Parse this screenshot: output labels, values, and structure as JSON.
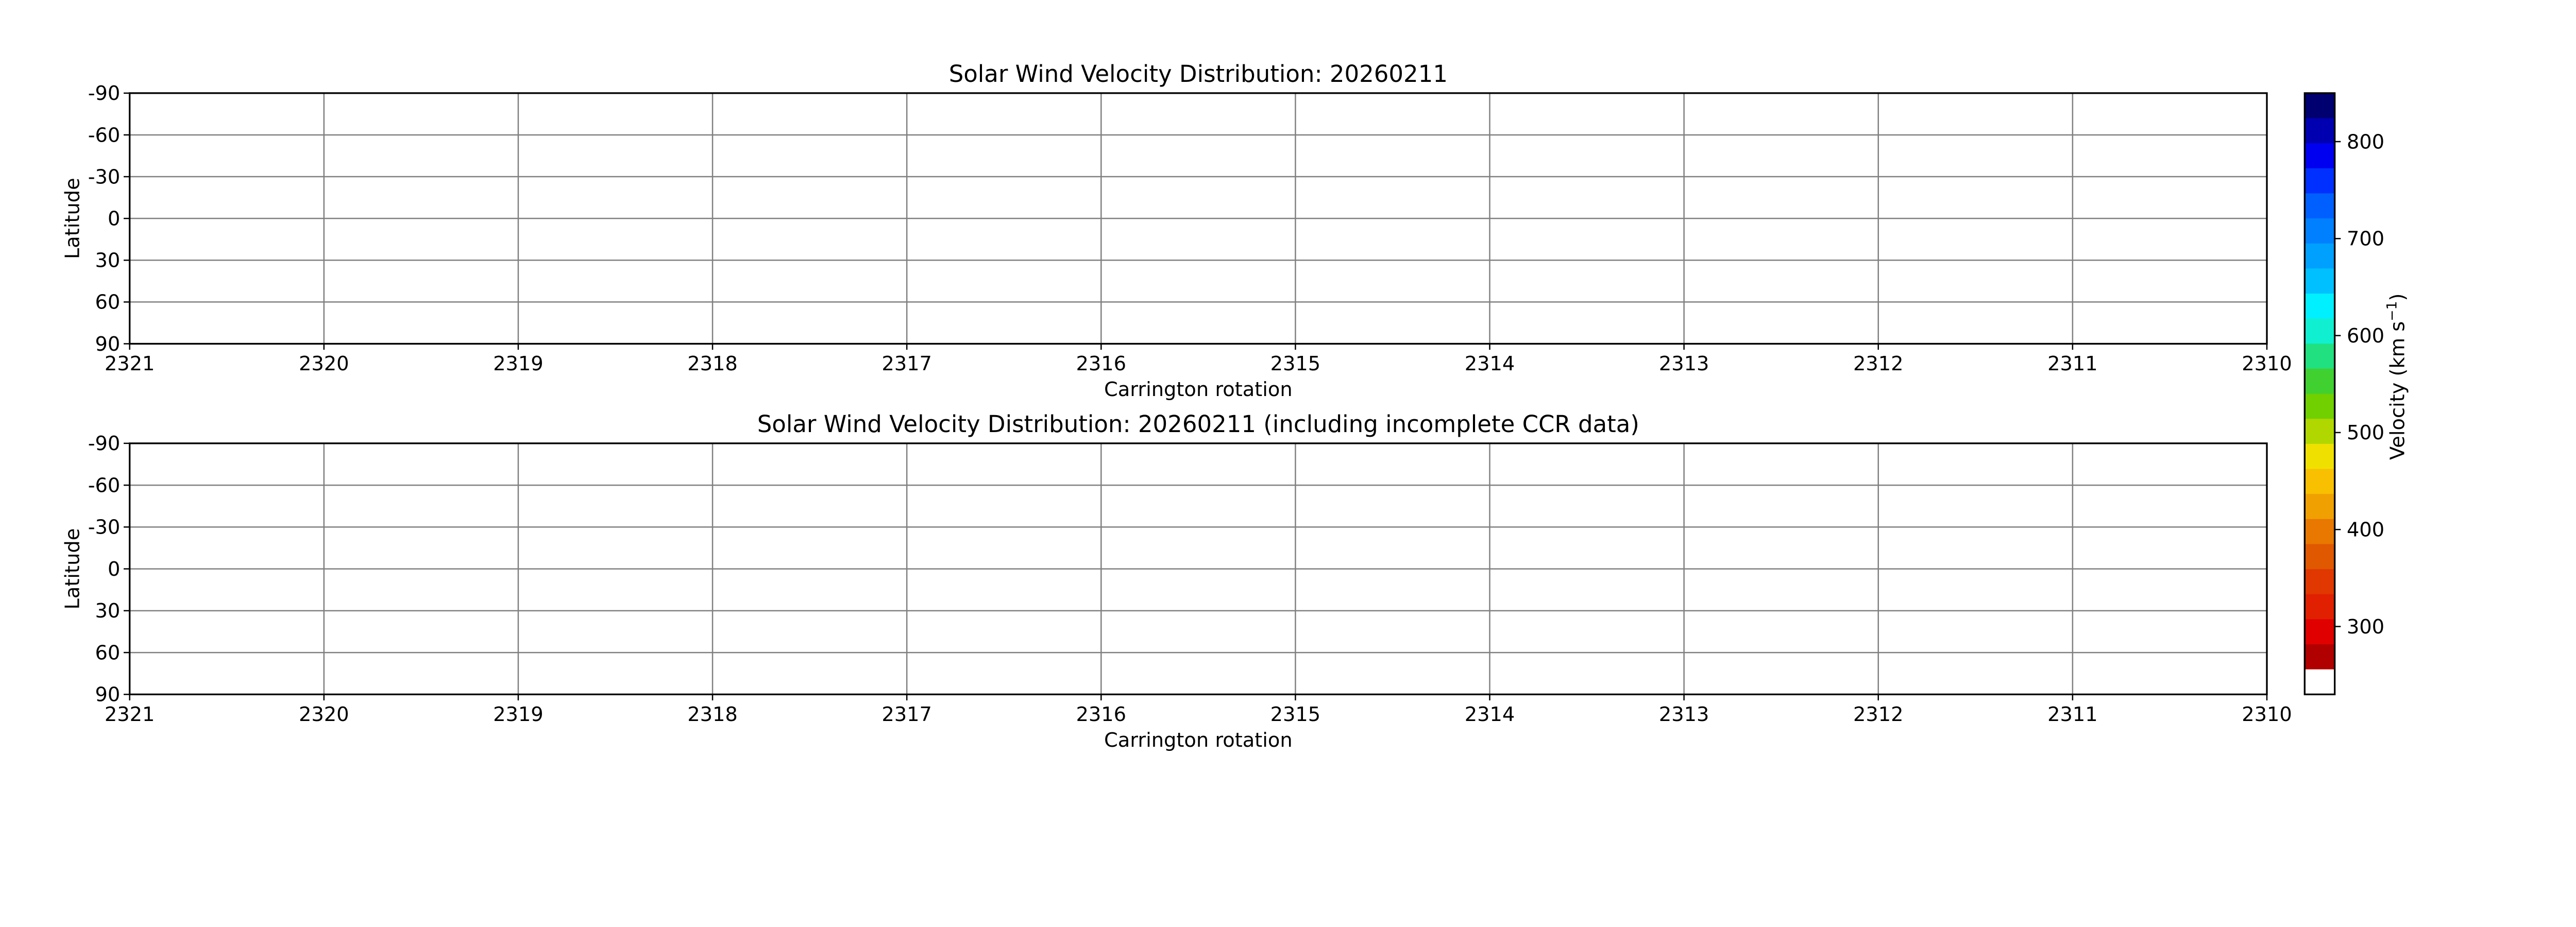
{
  "chart_data": [
    {
      "type": "heatmap",
      "title": "Solar Wind Velocity Distribution: 20260211",
      "xlabel": "Carrington rotation",
      "ylabel": "Latitude",
      "x_ticks": [
        "2321",
        "2320",
        "2319",
        "2318",
        "2317",
        "2316",
        "2315",
        "2314",
        "2313",
        "2312",
        "2311",
        "2310"
      ],
      "y_ticks": [
        "-90",
        "-60",
        "-30",
        "0",
        "30",
        "60",
        "90"
      ],
      "xlim": [
        2321,
        2310
      ],
      "ylim": [
        -90,
        90
      ],
      "y_inverted": true,
      "grid": true,
      "values": []
    },
    {
      "type": "heatmap",
      "title": "Solar Wind Velocity Distribution: 20260211 (including incomplete CCR data)",
      "xlabel": "Carrington rotation",
      "ylabel": "Latitude",
      "x_ticks": [
        "2321",
        "2320",
        "2319",
        "2318",
        "2317",
        "2316",
        "2315",
        "2314",
        "2313",
        "2312",
        "2311",
        "2310"
      ],
      "y_ticks": [
        "-90",
        "-60",
        "-30",
        "0",
        "30",
        "60",
        "90"
      ],
      "xlim": [
        2321,
        2310
      ],
      "ylim": [
        -90,
        90
      ],
      "y_inverted": true,
      "grid": true,
      "values": []
    }
  ],
  "colorbar": {
    "label": "Velocity (km s",
    "label_sup": "−1",
    "label_end": ")",
    "ticks": [
      "300",
      "400",
      "500",
      "600",
      "700",
      "800"
    ],
    "range": [
      230,
      850
    ],
    "under_color": "#ffffff",
    "colors_top_to_bottom": [
      "#000070",
      "#0000b0",
      "#0000f0",
      "#0030ff",
      "#0060ff",
      "#0080ff",
      "#00a0ff",
      "#00c0ff",
      "#00f0ff",
      "#10f0d0",
      "#20e080",
      "#40d030",
      "#70d000",
      "#b0d800",
      "#f0e000",
      "#f8c000",
      "#f0a000",
      "#e87800",
      "#e05800",
      "#e03800",
      "#e02000",
      "#e00000",
      "#b00000"
    ]
  }
}
